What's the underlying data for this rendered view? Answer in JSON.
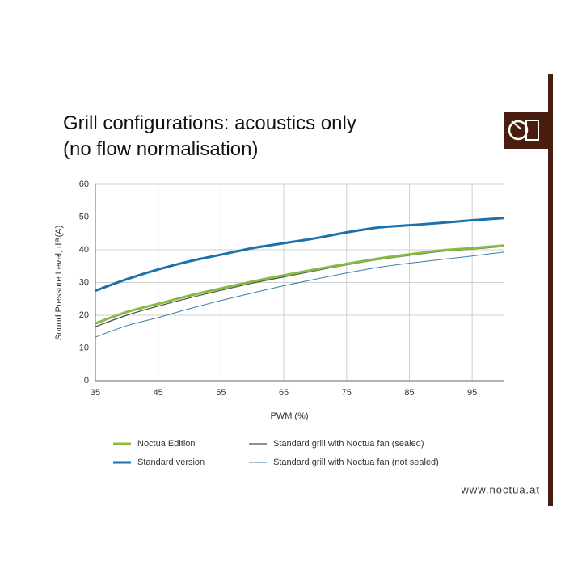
{
  "chart_data": {
    "type": "line",
    "title": [
      "Grill configurations: acoustics only",
      "(no flow normalisation)"
    ],
    "x_label": "PWM (%)",
    "y_label": "Sound Pressure Level, dB(A)",
    "footer": "www.noctua.at",
    "x": [
      35,
      40,
      45,
      50,
      55,
      60,
      65,
      70,
      75,
      80,
      85,
      90,
      95,
      100
    ],
    "xlim": [
      35,
      100
    ],
    "xticks": [
      35,
      45,
      55,
      65,
      75,
      85,
      95
    ],
    "ylim": [
      0,
      60
    ],
    "yticks": [
      0,
      10,
      20,
      30,
      40,
      50,
      60
    ],
    "grid": true,
    "series": [
      {
        "name": "Noctua Edition",
        "color": "#86bc42",
        "line_width": 3,
        "values": [
          17.5,
          21,
          23.5,
          26,
          28.2,
          30.3,
          32.2,
          34,
          35.7,
          37.3,
          38.6,
          39.8,
          40.5,
          41.3
        ]
      },
      {
        "name": "Standard version",
        "color": "#1a72ad",
        "line_width": 3,
        "values": [
          27.5,
          31,
          34,
          36.5,
          38.5,
          40.5,
          42,
          43.5,
          45.3,
          46.8,
          47.5,
          48.2,
          49,
          49.7
        ]
      },
      {
        "name": "Standard grill with Noctua fan (sealed)",
        "color": "#4a4a4a",
        "line_width": 1.2,
        "values": [
          16.5,
          20,
          22.8,
          25.3,
          27.6,
          29.8,
          31.7,
          33.6,
          35.4,
          37,
          38.3,
          39.5,
          40.2,
          41
        ]
      },
      {
        "name": "Standard grill with Noctua fan (not sealed)",
        "color": "#3b7fa8",
        "line_width": 1,
        "values": [
          13.3,
          16.8,
          19.3,
          22,
          24.5,
          26.8,
          29,
          31,
          32.9,
          34.6,
          35.9,
          37,
          38.1,
          39.3
        ]
      }
    ]
  }
}
